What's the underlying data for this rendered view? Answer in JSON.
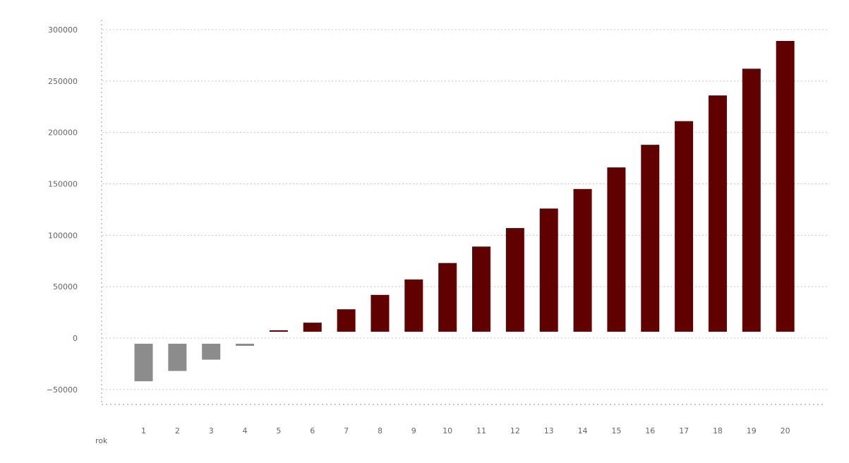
{
  "chart_data": {
    "type": "bar",
    "title": "",
    "xlabel": "rok",
    "ylabel": "",
    "categories": [
      "1",
      "2",
      "3",
      "4",
      "5",
      "6",
      "7",
      "8",
      "9",
      "10",
      "11",
      "12",
      "13",
      "14",
      "15",
      "16",
      "17",
      "18",
      "19",
      "20"
    ],
    "series": [
      {
        "values": [
          -42000,
          -32000,
          -21000,
          -2000,
          2500,
          15000,
          28000,
          42000,
          57000,
          73000,
          89000,
          107000,
          126000,
          145000,
          166000,
          188000,
          211000,
          236000,
          262000,
          289000
        ]
      }
    ],
    "ylim": [
      -65000,
      310000
    ],
    "yticks": [
      300000,
      250000,
      200000,
      150000,
      100000,
      50000,
      0,
      -50000
    ],
    "ytick_labels": [
      "300000",
      "250000",
      "200000",
      "150000",
      "100000",
      "50000",
      "0",
      "−50000"
    ],
    "grid": true,
    "colors": {
      "positive": "#600000",
      "negative": "#8c8c8c",
      "grid": "#c8c8c8",
      "axis": "#a8a8a8",
      "text": "#666666"
    }
  }
}
